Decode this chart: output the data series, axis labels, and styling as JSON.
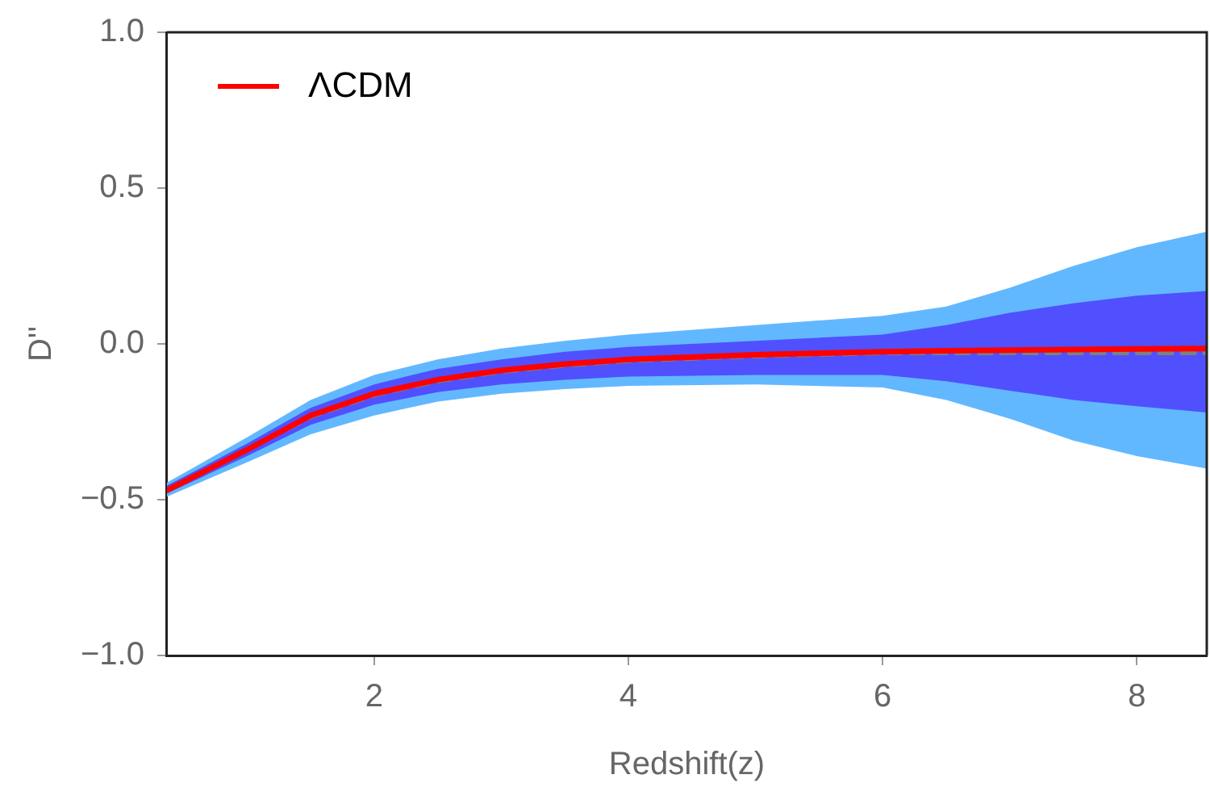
{
  "chart_data": {
    "type": "line",
    "xlabel": "Redshift(z)",
    "ylabel": "D''",
    "x": [
      0.37,
      1,
      1.5,
      2,
      2.5,
      3,
      3.5,
      4,
      5,
      6,
      6.5,
      7,
      7.5,
      8,
      8.55
    ],
    "series": [
      {
        "type": "area",
        "color": "#62b8ff",
        "values": [
          null,
          null,
          null,
          null,
          null,
          null,
          null,
          null,
          null,
          null,
          null,
          null,
          null,
          null,
          null
        ],
        "lower": [
          -0.49,
          -0.38,
          -0.29,
          -0.23,
          -0.185,
          -0.16,
          -0.145,
          -0.135,
          -0.13,
          -0.14,
          -0.18,
          -0.24,
          -0.31,
          -0.36,
          -0.4
        ],
        "upper": [
          -0.445,
          -0.3,
          -0.18,
          -0.1,
          -0.05,
          -0.015,
          0.01,
          0.03,
          0.06,
          0.09,
          0.12,
          0.18,
          0.25,
          0.31,
          0.36
        ]
      },
      {
        "type": "area",
        "color": "#5050ff",
        "values": [
          null,
          null,
          null,
          null,
          null,
          null,
          null,
          null,
          null,
          null,
          null,
          null,
          null,
          null,
          null
        ],
        "lower": [
          -0.48,
          -0.36,
          -0.26,
          -0.195,
          -0.155,
          -0.13,
          -0.115,
          -0.105,
          -0.1,
          -0.1,
          -0.12,
          -0.15,
          -0.18,
          -0.2,
          -0.22
        ],
        "upper": [
          -0.455,
          -0.32,
          -0.205,
          -0.13,
          -0.08,
          -0.05,
          -0.025,
          -0.01,
          0.01,
          0.03,
          0.06,
          0.1,
          0.13,
          0.155,
          0.17
        ]
      },
      {
        "type": "line",
        "color": "#808080",
        "line_style": "dashed",
        "values": [
          -0.47,
          -0.34,
          -0.235,
          -0.165,
          -0.12,
          -0.09,
          -0.07,
          -0.055,
          -0.04,
          -0.03,
          -0.03,
          -0.03,
          -0.03,
          -0.03,
          -0.03
        ]
      },
      {
        "type": "line",
        "name": "ΛCDM",
        "color": "#ff0000",
        "line_style": "solid",
        "values": [
          -0.47,
          -0.34,
          -0.23,
          -0.16,
          -0.115,
          -0.085,
          -0.065,
          -0.05,
          -0.035,
          -0.025,
          -0.022,
          -0.02,
          -0.018,
          -0.016,
          -0.015
        ]
      }
    ],
    "xlim": [
      0.37,
      8.55
    ],
    "xticks": [
      2,
      4,
      6,
      8
    ],
    "ylim": [
      -1,
      1
    ],
    "yticks": [
      {
        "value": -1,
        "label": "−1.0"
      },
      {
        "value": -0.5,
        "label": "−0.5"
      },
      {
        "value": 0,
        "label": "0.0"
      },
      {
        "value": 0.5,
        "label": "0.5"
      },
      {
        "value": 1,
        "label": "1.0"
      }
    ],
    "grid": false,
    "legend": "top left",
    "marker": "none"
  }
}
